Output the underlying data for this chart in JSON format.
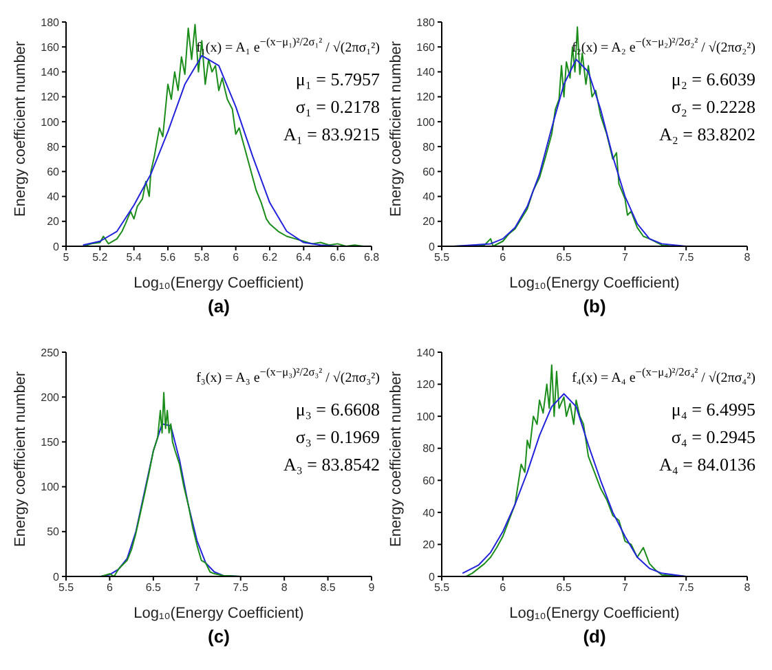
{
  "chart_data": [
    {
      "type": "line",
      "title": "(a)",
      "xlabel": "Log₁₀(Energy Coefficient)",
      "ylabel": "Energy coefficient number",
      "xlim": [
        5,
        6.8
      ],
      "xticks": [
        5,
        5.2,
        5.4,
        5.6,
        5.8,
        6,
        6.2,
        6.4,
        6.6,
        6.8
      ],
      "ylim": [
        0,
        180
      ],
      "yticks": [
        0,
        20,
        40,
        60,
        80,
        100,
        120,
        140,
        160,
        180
      ],
      "annotations": [
        "f₁(x) = A₁ e$^{−(x−μ₁)²/2σ₁²}$ / √(2πσ₁²)",
        "μ₁ = 5.7957",
        "σ₁ = 0.2178",
        "A₁ = 83.9215"
      ],
      "series": [
        {
          "color": "#1a8c1a",
          "x": [
            5.1,
            5.15,
            5.2,
            5.22,
            5.25,
            5.3,
            5.33,
            5.35,
            5.38,
            5.4,
            5.42,
            5.45,
            5.47,
            5.49,
            5.5,
            5.52,
            5.55,
            5.57,
            5.6,
            5.62,
            5.64,
            5.66,
            5.68,
            5.7,
            5.72,
            5.74,
            5.76,
            5.78,
            5.8,
            5.82,
            5.84,
            5.86,
            5.88,
            5.9,
            5.92,
            5.95,
            5.98,
            6,
            6.02,
            6.05,
            6.08,
            6.1,
            6.12,
            6.15,
            6.18,
            6.2,
            6.25,
            6.3,
            6.35,
            6.4,
            6.45,
            6.5,
            6.55,
            6.6,
            6.65,
            6.7,
            6.75
          ],
          "values": [
            0,
            2,
            3,
            8,
            2,
            6,
            12,
            18,
            28,
            22,
            32,
            38,
            52,
            40,
            60,
            72,
            95,
            88,
            130,
            118,
            140,
            125,
            152,
            138,
            175,
            150,
            178,
            140,
            165,
            130,
            150,
            140,
            145,
            125,
            135,
            118,
            110,
            90,
            95,
            80,
            65,
            55,
            45,
            35,
            22,
            18,
            12,
            8,
            6,
            4,
            2,
            3,
            1,
            2,
            0,
            1,
            0
          ]
        },
        {
          "color": "#2222dd",
          "x": [
            5.1,
            5.2,
            5.3,
            5.4,
            5.5,
            5.6,
            5.7,
            5.8,
            5.9,
            6,
            6.1,
            6.2,
            6.3,
            6.4,
            6.5,
            6.6,
            6.75
          ],
          "values": [
            1,
            4,
            12,
            33,
            58,
            92,
            130,
            153,
            145,
            112,
            72,
            35,
            12,
            3,
            1,
            0,
            0
          ]
        }
      ]
    },
    {
      "type": "line",
      "title": "(b)",
      "xlabel": "Log₁₀(Energy Coefficient)",
      "ylabel": "Energy coefficient number",
      "xlim": [
        5.5,
        8
      ],
      "xticks": [
        5.5,
        6,
        6.5,
        7,
        7.5,
        8
      ],
      "ylim": [
        0,
        180
      ],
      "yticks": [
        0,
        20,
        40,
        60,
        80,
        100,
        120,
        140,
        160,
        180
      ],
      "annotations": [
        "f₂(x) = A₂ e$^{−(x−μ₂)²/2σ₂²}$ / √(2πσ₂²)",
        "μ₂ = 6.6039",
        "σ₂ = 0.2228",
        "A₂ = 83.8202"
      ],
      "series": [
        {
          "color": "#1a8c1a",
          "x": [
            5.6,
            5.85,
            5.9,
            5.92,
            6,
            6.05,
            6.1,
            6.15,
            6.2,
            6.25,
            6.3,
            6.35,
            6.4,
            6.43,
            6.46,
            6.48,
            6.5,
            6.52,
            6.55,
            6.57,
            6.59,
            6.61,
            6.63,
            6.65,
            6.68,
            6.7,
            6.73,
            6.76,
            6.8,
            6.85,
            6.9,
            6.93,
            6.95,
            7,
            7.02,
            7.05,
            7.1,
            7.15,
            7.2,
            7.3,
            7.4,
            7.7
          ],
          "values": [
            0,
            1,
            6,
            0,
            4,
            10,
            14,
            22,
            30,
            45,
            55,
            72,
            90,
            110,
            118,
            145,
            120,
            148,
            135,
            160,
            140,
            176,
            138,
            155,
            130,
            145,
            120,
            125,
            105,
            90,
            70,
            75,
            50,
            38,
            25,
            28,
            15,
            8,
            6,
            1,
            0,
            0
          ]
        },
        {
          "color": "#2222dd",
          "x": [
            5.6,
            5.9,
            6,
            6.1,
            6.2,
            6.3,
            6.4,
            6.5,
            6.6,
            6.7,
            6.8,
            6.9,
            7,
            7.1,
            7.2,
            7.3,
            7.5,
            7.7
          ],
          "values": [
            0,
            2,
            6,
            15,
            32,
            58,
            95,
            130,
            150,
            140,
            110,
            72,
            40,
            18,
            6,
            2,
            0,
            0
          ]
        }
      ]
    },
    {
      "type": "line",
      "title": "(c)",
      "xlabel": "Log₁₀(Energy Coefficient)",
      "ylabel": "Energy coefficient number",
      "xlim": [
        5.5,
        9
      ],
      "xticks": [
        5.5,
        6,
        6.5,
        7,
        7.5,
        8,
        8.5,
        9
      ],
      "ylim": [
        0,
        250
      ],
      "yticks": [
        0,
        50,
        100,
        150,
        200,
        250
      ],
      "annotations": [
        "f₃(x) = A₃ e$^{−(x−μ₃)²/2σ₃²}$ / √(2πσ₃²)",
        "μ₃ = 6.6608",
        "σ₃ = 0.1969",
        "A₃ = 83.8542"
      ],
      "series": [
        {
          "color": "#2222dd",
          "x": [
            5.9,
            6,
            6.1,
            6.2,
            6.3,
            6.4,
            6.5,
            6.6,
            6.7,
            6.8,
            6.9,
            7,
            7.1,
            7.2,
            7.3,
            7.5,
            8.8
          ],
          "values": [
            0,
            2,
            8,
            20,
            50,
            95,
            140,
            170,
            168,
            130,
            80,
            40,
            15,
            5,
            1,
            0,
            0
          ]
        },
        {
          "color": "#1a8c1a",
          "x": [
            5.9,
            6,
            6.05,
            6.1,
            6.2,
            6.25,
            6.3,
            6.35,
            6.4,
            6.45,
            6.5,
            6.55,
            6.58,
            6.6,
            6.62,
            6.64,
            6.66,
            6.68,
            6.7,
            6.72,
            6.75,
            6.8,
            6.85,
            6.9,
            6.95,
            7,
            7.05,
            7.1,
            7.15,
            7.2,
            7.3,
            7.5
          ],
          "values": [
            0,
            3,
            0,
            8,
            18,
            30,
            48,
            70,
            92,
            115,
            140,
            155,
            185,
            160,
            205,
            165,
            185,
            160,
            170,
            150,
            140,
            125,
            100,
            80,
            55,
            35,
            18,
            15,
            5,
            3,
            1,
            0
          ]
        }
      ]
    },
    {
      "type": "line",
      "title": "(d)",
      "xlabel": "Log₁₀(Energy Coefficient)",
      "ylabel": "Energy coefficient number",
      "xlim": [
        5.5,
        8
      ],
      "xticks": [
        5.5,
        6,
        6.5,
        7,
        7.5,
        8
      ],
      "ylim": [
        0,
        140
      ],
      "yticks": [
        0,
        20,
        40,
        60,
        80,
        100,
        120,
        140
      ],
      "annotations": [
        "f₄(x) = A₄ e$^{−(x−μ₄)²/2σ₄²}$ / √(2πσ₄²)",
        "μ₄ = 6.4995",
        "σ₄ = 0.2945",
        "A₄ = 84.0136"
      ],
      "series": [
        {
          "color": "#1a8c1a",
          "x": [
            5.7,
            5.75,
            5.8,
            5.85,
            5.9,
            5.95,
            6,
            6.05,
            6.1,
            6.12,
            6.15,
            6.18,
            6.2,
            6.22,
            6.25,
            6.28,
            6.3,
            6.33,
            6.36,
            6.38,
            6.4,
            6.42,
            6.44,
            6.46,
            6.5,
            6.52,
            6.55,
            6.58,
            6.6,
            6.63,
            6.66,
            6.7,
            6.75,
            6.8,
            6.85,
            6.9,
            6.95,
            7,
            7.05,
            7.1,
            7.15,
            7.2,
            7.25,
            7.3,
            7.5,
            7.8
          ],
          "values": [
            0,
            2,
            5,
            8,
            12,
            18,
            25,
            35,
            45,
            55,
            70,
            65,
            85,
            80,
            100,
            95,
            110,
            102,
            120,
            105,
            132,
            100,
            128,
            105,
            112,
            100,
            108,
            95,
            110,
            100,
            95,
            75,
            65,
            55,
            48,
            38,
            35,
            22,
            20,
            12,
            18,
            8,
            4,
            1,
            0,
            0
          ]
        },
        {
          "color": "#2222dd",
          "x": [
            5.67,
            5.8,
            5.9,
            6,
            6.1,
            6.2,
            6.3,
            6.4,
            6.5,
            6.6,
            6.7,
            6.8,
            6.9,
            7,
            7.1,
            7.2,
            7.3,
            7.5,
            7.8
          ],
          "values": [
            2,
            7,
            15,
            28,
            45,
            65,
            88,
            106,
            114,
            106,
            82,
            60,
            40,
            25,
            12,
            5,
            2,
            0,
            0
          ]
        }
      ]
    }
  ]
}
